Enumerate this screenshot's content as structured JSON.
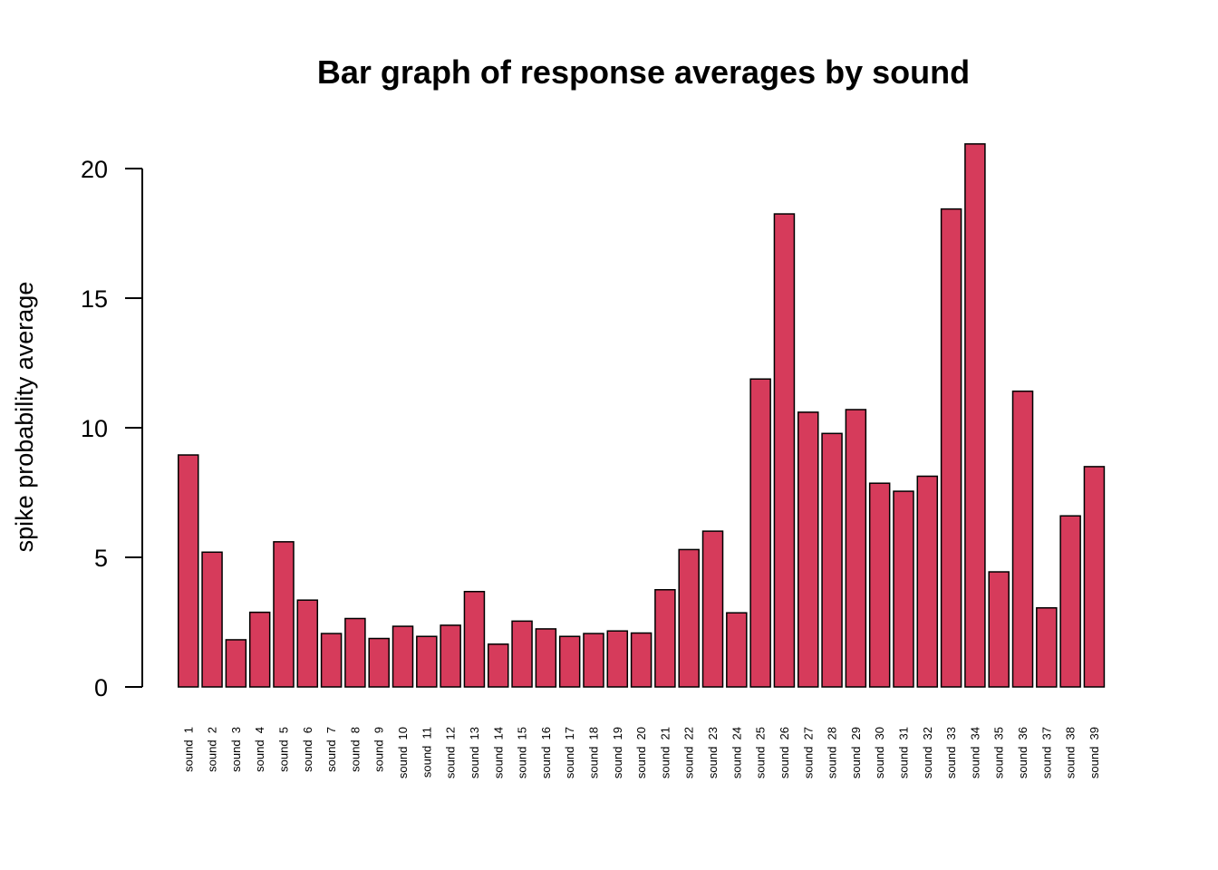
{
  "chart_data": {
    "type": "bar",
    "title": "Bar graph of response averages by sound",
    "xlabel": "",
    "ylabel": "spike probability average",
    "ylim": [
      0,
      21
    ],
    "y_ticks": [
      "0",
      "5",
      "10",
      "15",
      "20"
    ],
    "bar_color": "#d63b5b",
    "border_color": "#000000",
    "grid": false,
    "categories": [
      "sound  1",
      "sound  2",
      "sound  3",
      "sound  4",
      "sound  5",
      "sound  6",
      "sound  7",
      "sound  8",
      "sound  9",
      "sound  10",
      "sound  11",
      "sound  12",
      "sound  13",
      "sound  14",
      "sound  15",
      "sound  16",
      "sound  17",
      "sound  18",
      "sound  19",
      "sound  20",
      "sound  21",
      "sound  22",
      "sound  23",
      "sound  24",
      "sound  25",
      "sound  26",
      "sound  27",
      "sound  28",
      "sound  29",
      "sound  30",
      "sound  31",
      "sound  32",
      "sound  33",
      "sound  34",
      "sound  35",
      "sound  36",
      "sound  37",
      "sound  38",
      "sound  39"
    ],
    "values": [
      8.95,
      5.2,
      1.82,
      2.88,
      5.6,
      3.35,
      2.06,
      2.64,
      1.87,
      2.34,
      1.95,
      2.38,
      3.68,
      1.65,
      2.54,
      2.24,
      1.95,
      2.06,
      2.16,
      2.08,
      3.75,
      5.3,
      6.01,
      2.86,
      11.88,
      18.25,
      10.6,
      9.78,
      10.7,
      7.86,
      7.55,
      8.13,
      18.44,
      20.95,
      4.44,
      11.41,
      3.05,
      6.6,
      8.5
    ]
  }
}
